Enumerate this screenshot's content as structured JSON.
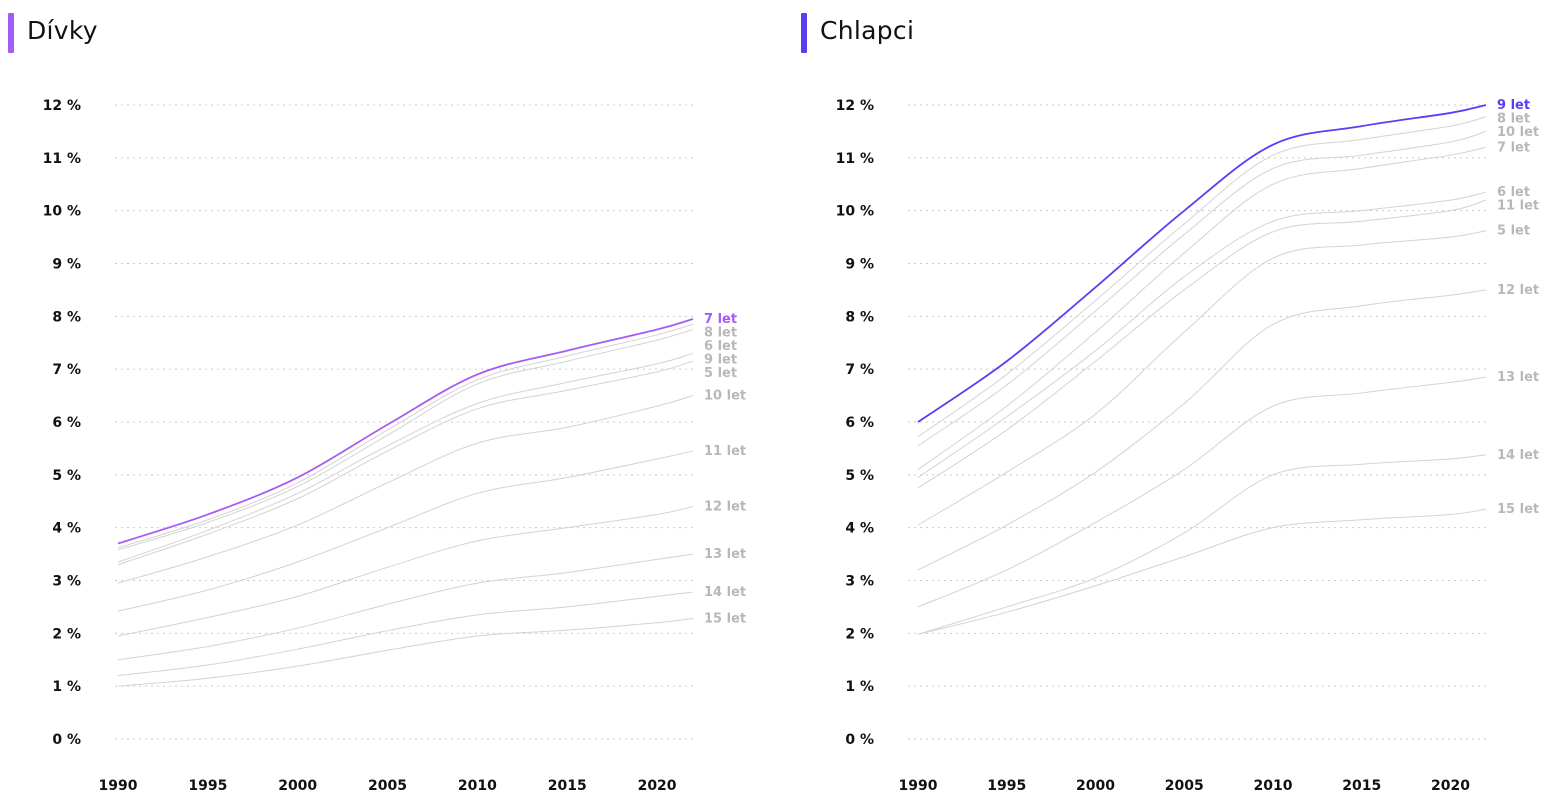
{
  "chart_data": [
    {
      "type": "line",
      "title": "Dívky",
      "accent": "#a45cf5",
      "highlight": "7 let",
      "x": [
        1990,
        1995,
        2000,
        2005,
        2010,
        2015,
        2020,
        2022
      ],
      "xticks": [
        1990,
        1995,
        2000,
        2005,
        2010,
        2015,
        2020
      ],
      "xlim": [
        1990,
        2022
      ],
      "ylim": [
        0,
        12
      ],
      "yticks": [
        "0 %",
        "1 %",
        "2 %",
        "3 %",
        "4 %",
        "5 %",
        "6 %",
        "7 %",
        "8 %",
        "9 %",
        "10 %",
        "11 %",
        "12 %"
      ],
      "grid": true,
      "series": [
        {
          "name": "7 let",
          "values": [
            3.7,
            4.25,
            4.95,
            5.95,
            6.9,
            7.35,
            7.75,
            7.95
          ]
        },
        {
          "name": "8 let",
          "values": [
            3.62,
            4.15,
            4.85,
            5.85,
            6.8,
            7.25,
            7.65,
            7.85
          ]
        },
        {
          "name": "6 let",
          "values": [
            3.58,
            4.1,
            4.78,
            5.75,
            6.72,
            7.15,
            7.55,
            7.75
          ]
        },
        {
          "name": "9 let",
          "values": [
            3.35,
            3.95,
            4.65,
            5.55,
            6.35,
            6.75,
            7.1,
            7.3
          ]
        },
        {
          "name": "5 let",
          "values": [
            3.3,
            3.88,
            4.55,
            5.45,
            6.25,
            6.6,
            6.95,
            7.15
          ]
        },
        {
          "name": "10 let",
          "values": [
            2.95,
            3.45,
            4.05,
            4.85,
            5.6,
            5.9,
            6.3,
            6.5
          ]
        },
        {
          "name": "11 let",
          "values": [
            2.42,
            2.82,
            3.35,
            4.0,
            4.65,
            4.95,
            5.3,
            5.45
          ]
        },
        {
          "name": "12 let",
          "values": [
            1.95,
            2.3,
            2.7,
            3.25,
            3.75,
            4.0,
            4.25,
            4.4
          ]
        },
        {
          "name": "13 let",
          "values": [
            1.5,
            1.75,
            2.1,
            2.55,
            2.95,
            3.15,
            3.4,
            3.5
          ]
        },
        {
          "name": "14 let",
          "values": [
            1.2,
            1.4,
            1.7,
            2.05,
            2.35,
            2.5,
            2.7,
            2.78
          ]
        },
        {
          "name": "15 let",
          "values": [
            1.0,
            1.15,
            1.38,
            1.68,
            1.95,
            2.06,
            2.2,
            2.28
          ]
        }
      ]
    },
    {
      "type": "line",
      "title": "Chlapci",
      "accent": "#5b3df5",
      "highlight": "9 let",
      "x": [
        1990,
        1995,
        2000,
        2005,
        2010,
        2015,
        2020,
        2022
      ],
      "xticks": [
        1990,
        1995,
        2000,
        2005,
        2010,
        2015,
        2020
      ],
      "xlim": [
        1990,
        2022
      ],
      "ylim": [
        0,
        12
      ],
      "yticks": [
        "0 %",
        "1 %",
        "2 %",
        "3 %",
        "4 %",
        "5 %",
        "6 %",
        "7 %",
        "8 %",
        "9 %",
        "10 %",
        "11 %",
        "12 %"
      ],
      "grid": true,
      "series": [
        {
          "name": "9 let",
          "values": [
            6.0,
            7.15,
            8.55,
            10.0,
            11.25,
            11.6,
            11.85,
            12.0
          ]
        },
        {
          "name": "8 let",
          "values": [
            5.72,
            6.9,
            8.3,
            9.75,
            11.05,
            11.35,
            11.6,
            11.78
          ]
        },
        {
          "name": "10 let",
          "values": [
            5.55,
            6.7,
            8.1,
            9.55,
            10.8,
            11.05,
            11.3,
            11.5
          ]
        },
        {
          "name": "7 let",
          "values": [
            5.1,
            6.3,
            7.7,
            9.2,
            10.5,
            10.8,
            11.05,
            11.2
          ]
        },
        {
          "name": "6 let",
          "values": [
            4.95,
            6.1,
            7.35,
            8.75,
            9.8,
            10.0,
            10.2,
            10.35
          ]
        },
        {
          "name": "11 let",
          "values": [
            4.75,
            5.85,
            7.15,
            8.5,
            9.6,
            9.8,
            10.0,
            10.2
          ]
        },
        {
          "name": "5 let",
          "values": [
            4.05,
            5.05,
            6.15,
            7.7,
            9.1,
            9.35,
            9.5,
            9.62
          ]
        },
        {
          "name": "12 let",
          "values": [
            3.2,
            4.05,
            5.05,
            6.35,
            7.85,
            8.2,
            8.4,
            8.5
          ]
        },
        {
          "name": "13 let",
          "values": [
            2.5,
            3.2,
            4.1,
            5.1,
            6.3,
            6.55,
            6.75,
            6.85
          ]
        },
        {
          "name": "14 let",
          "values": [
            1.98,
            2.5,
            3.05,
            3.9,
            5.0,
            5.2,
            5.3,
            5.38
          ]
        },
        {
          "name": "15 let",
          "values": [
            1.98,
            2.4,
            2.9,
            3.45,
            4.0,
            4.15,
            4.25,
            4.35
          ]
        }
      ]
    }
  ]
}
